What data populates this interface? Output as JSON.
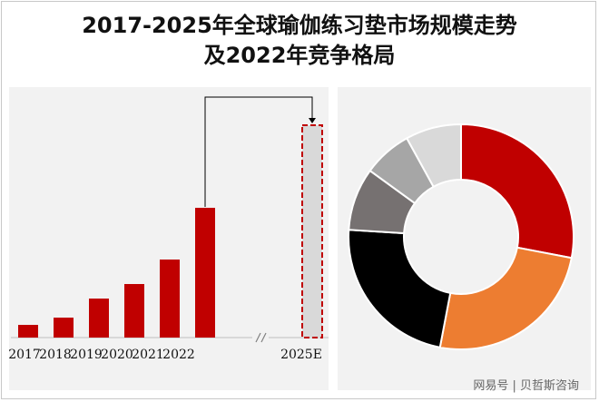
{
  "title": {
    "line1": "2017-2025年全球瑜伽练习垫市场规模走势",
    "line2": "及2022年竞争格局"
  },
  "watermark": "网易号 | 贝哲斯咨询",
  "colors": {
    "bar": "#c00000",
    "forecast_fill": "#d9d9d9",
    "forecast_border": "#c00000",
    "panel": "#f2f2f2"
  },
  "chart_data": [
    {
      "type": "bar",
      "title": "",
      "xlabel": "",
      "ylabel": "",
      "categories": [
        "2017",
        "2018",
        "2019",
        "2020",
        "2021",
        "2022",
        "2025E"
      ],
      "values": [
        14,
        22,
        43,
        59,
        86,
        143,
        234
      ],
      "forecast_categories": [
        "2025E"
      ],
      "axis_break_between": [
        "2022",
        "2025E"
      ],
      "annotation": "arrow-from-2022-to-2025E",
      "ylim": [
        0,
        250
      ],
      "grid": false,
      "legend": "none"
    },
    {
      "type": "pie",
      "style": "donut",
      "title": "",
      "slices": [
        {
          "value": 28,
          "color": "#c00000"
        },
        {
          "value": 25,
          "color": "#ed7d31"
        },
        {
          "value": 23,
          "color": "#000000"
        },
        {
          "value": 9,
          "color": "#767171"
        },
        {
          "value": 7,
          "color": "#a6a6a6"
        },
        {
          "value": 8,
          "color": "#d9d9d9"
        }
      ],
      "legend": "none"
    }
  ]
}
